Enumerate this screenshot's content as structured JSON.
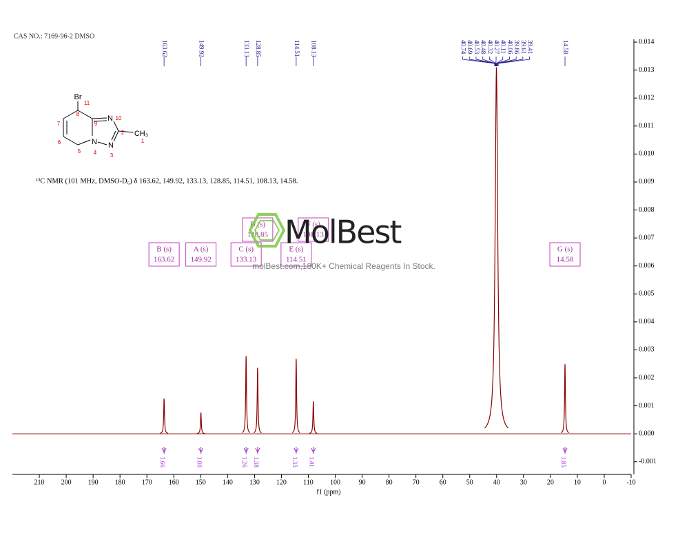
{
  "chart_data": {
    "type": "nmr",
    "title": "CAS NO.: 7169-96-2 DMSO",
    "xlabel": "f1 (ppm)",
    "xlim": [
      220,
      -10
    ],
    "xticks": [
      210,
      200,
      190,
      180,
      170,
      160,
      150,
      140,
      130,
      120,
      110,
      100,
      90,
      80,
      70,
      60,
      50,
      40,
      30,
      20,
      10,
      0,
      -10
    ],
    "ylim": [
      -0.00145,
      0.0141
    ],
    "yticks": [
      -0.001,
      {
        "value": 0,
        "label": "0.000"
      },
      0.001,
      0.002,
      0.003,
      0.004,
      0.005,
      0.006,
      0.007,
      0.008,
      0.009,
      {
        "value": 0.01,
        "label": "0.010"
      },
      0.011,
      0.012,
      0.013,
      0.014
    ],
    "color": "#8b0000",
    "peaks": {
      "x": [
        163.62,
        149.92,
        133.13,
        128.85,
        114.51,
        108.13,
        40.07,
        14.58
      ],
      "values": [
        0.00126,
        0.00076,
        0.00278,
        0.00236,
        0.00268,
        0.00116,
        0.0131,
        0.00249
      ]
    },
    "peak_labels": [
      163.62,
      149.92,
      133.13,
      128.85,
      114.51,
      108.13,
      40.74,
      40.69,
      40.53,
      40.48,
      40.32,
      40.27,
      40.11,
      40.06,
      39.86,
      39.61,
      39.41,
      14.58
    ],
    "multiplets": [
      {
        "label": "B (s)",
        "shift": 163.62
      },
      {
        "label": "A (s)",
        "shift": 149.92
      },
      {
        "label": "C (s)",
        "shift": 133.13
      },
      {
        "label": "D (s)",
        "shift": 128.85
      },
      {
        "label": "E (s)",
        "shift": 114.51
      },
      {
        "label": "F (s)",
        "shift": 108.13
      },
      {
        "label": "G (s)",
        "shift": 14.58
      }
    ],
    "integrals": {
      "x": [
        163.62,
        149.92,
        133.13,
        128.85,
        114.51,
        108.13,
        14.58
      ],
      "values": [
        1.66,
        1.0,
        1.26,
        1.38,
        1.35,
        1.41,
        3.85
      ],
      "value_labels": [
        "1.66",
        "1.00",
        "1.26",
        "1.38",
        "1.35",
        "1.41",
        "3.85"
      ]
    },
    "description": "¹³C NMR (101 MHz, DMSO-D₆) δ 163.62, 149.92, 133.13, 128.85, 114.51, 108.13, 14.58.",
    "structure": {
      "atoms": [
        "Br",
        "11",
        "8",
        "7",
        "9",
        "N",
        "10",
        "2",
        "CH₃",
        "1",
        "6",
        "5",
        "N",
        "4",
        "N",
        "3"
      ]
    },
    "watermark": {
      "brand": "MolBest",
      "tagline": "molBest.com,180K+ Chemical Reagents In Stock."
    }
  }
}
